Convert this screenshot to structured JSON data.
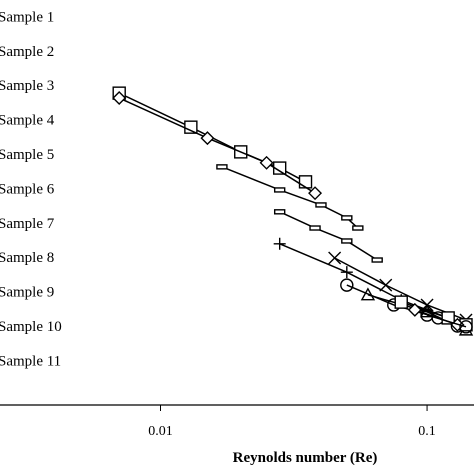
{
  "chart_data": {
    "type": "line",
    "x_label": "Reynolds number (Re)",
    "xscale": "log",
    "xlim": [
      0.0025,
      0.15
    ],
    "xticks": [
      0.01,
      0.1
    ],
    "ylim": [
      0,
      100
    ],
    "legend": "left",
    "series": [
      {
        "name": "Sample 1",
        "color": "#000000",
        "marker": "square",
        "x": [
          0.007,
          0.013,
          0.02,
          0.028,
          0.035
        ],
        "values": [
          77,
          68.6,
          62.5,
          58.5,
          55.1
        ]
      },
      {
        "name": "Sample 2",
        "color": "#000000",
        "marker": "diamond",
        "x": [
          0.007,
          0.015,
          0.025,
          0.038
        ],
        "values": [
          75.8,
          65.9,
          59.8,
          52.3
        ]
      },
      {
        "name": "Sample 3",
        "color": "#000000",
        "marker": "dash",
        "x": [
          0.017,
          0.028,
          0.04,
          0.05,
          0.055
        ],
        "values": [
          58.8,
          53.1,
          49.4,
          46.2,
          43.7
        ]
      },
      {
        "name": "Sample 4",
        "color": "#000000",
        "marker": "dash",
        "x": [
          0.028,
          0.038,
          0.05,
          0.065
        ],
        "values": [
          47.7,
          43.7,
          40.5,
          35.8
        ]
      },
      {
        "name": "Sample 5",
        "color": "#000000",
        "marker": "plus",
        "x": [
          0.028,
          0.05,
          0.08,
          0.12
        ],
        "values": [
          39.8,
          32.8,
          25.9,
          21.5
        ]
      },
      {
        "name": "Sample 6",
        "color": "#000000",
        "marker": "x",
        "x": [
          0.045,
          0.07,
          0.1,
          0.14
        ],
        "values": [
          36.3,
          29.6,
          24.7,
          21
        ]
      },
      {
        "name": "Sample 7",
        "color": "#000000",
        "marker": "circle",
        "x": [
          0.05,
          0.075,
          0.11,
          0.13
        ],
        "values": [
          29.6,
          24.7,
          21.5,
          19.5
        ]
      },
      {
        "name": "Sample 8",
        "color": "#000000",
        "marker": "triangle",
        "x": [
          0.06,
          0.1,
          0.14
        ],
        "values": [
          27.2,
          23,
          18.5
        ]
      },
      {
        "name": "Sample 9",
        "color": "#000000",
        "marker": "square",
        "x": [
          0.08,
          0.12,
          0.14
        ],
        "values": [
          25.4,
          21.5,
          19.8
        ]
      },
      {
        "name": "Sample 10",
        "color": "#000000",
        "marker": "diamond",
        "x": [
          0.09,
          0.13
        ],
        "values": [
          23.5,
          19.8
        ]
      },
      {
        "name": "Sample 11",
        "color": "#000000",
        "marker": "circle",
        "x": [
          0.1,
          0.14
        ],
        "values": [
          22.2,
          19.3
        ]
      }
    ]
  }
}
